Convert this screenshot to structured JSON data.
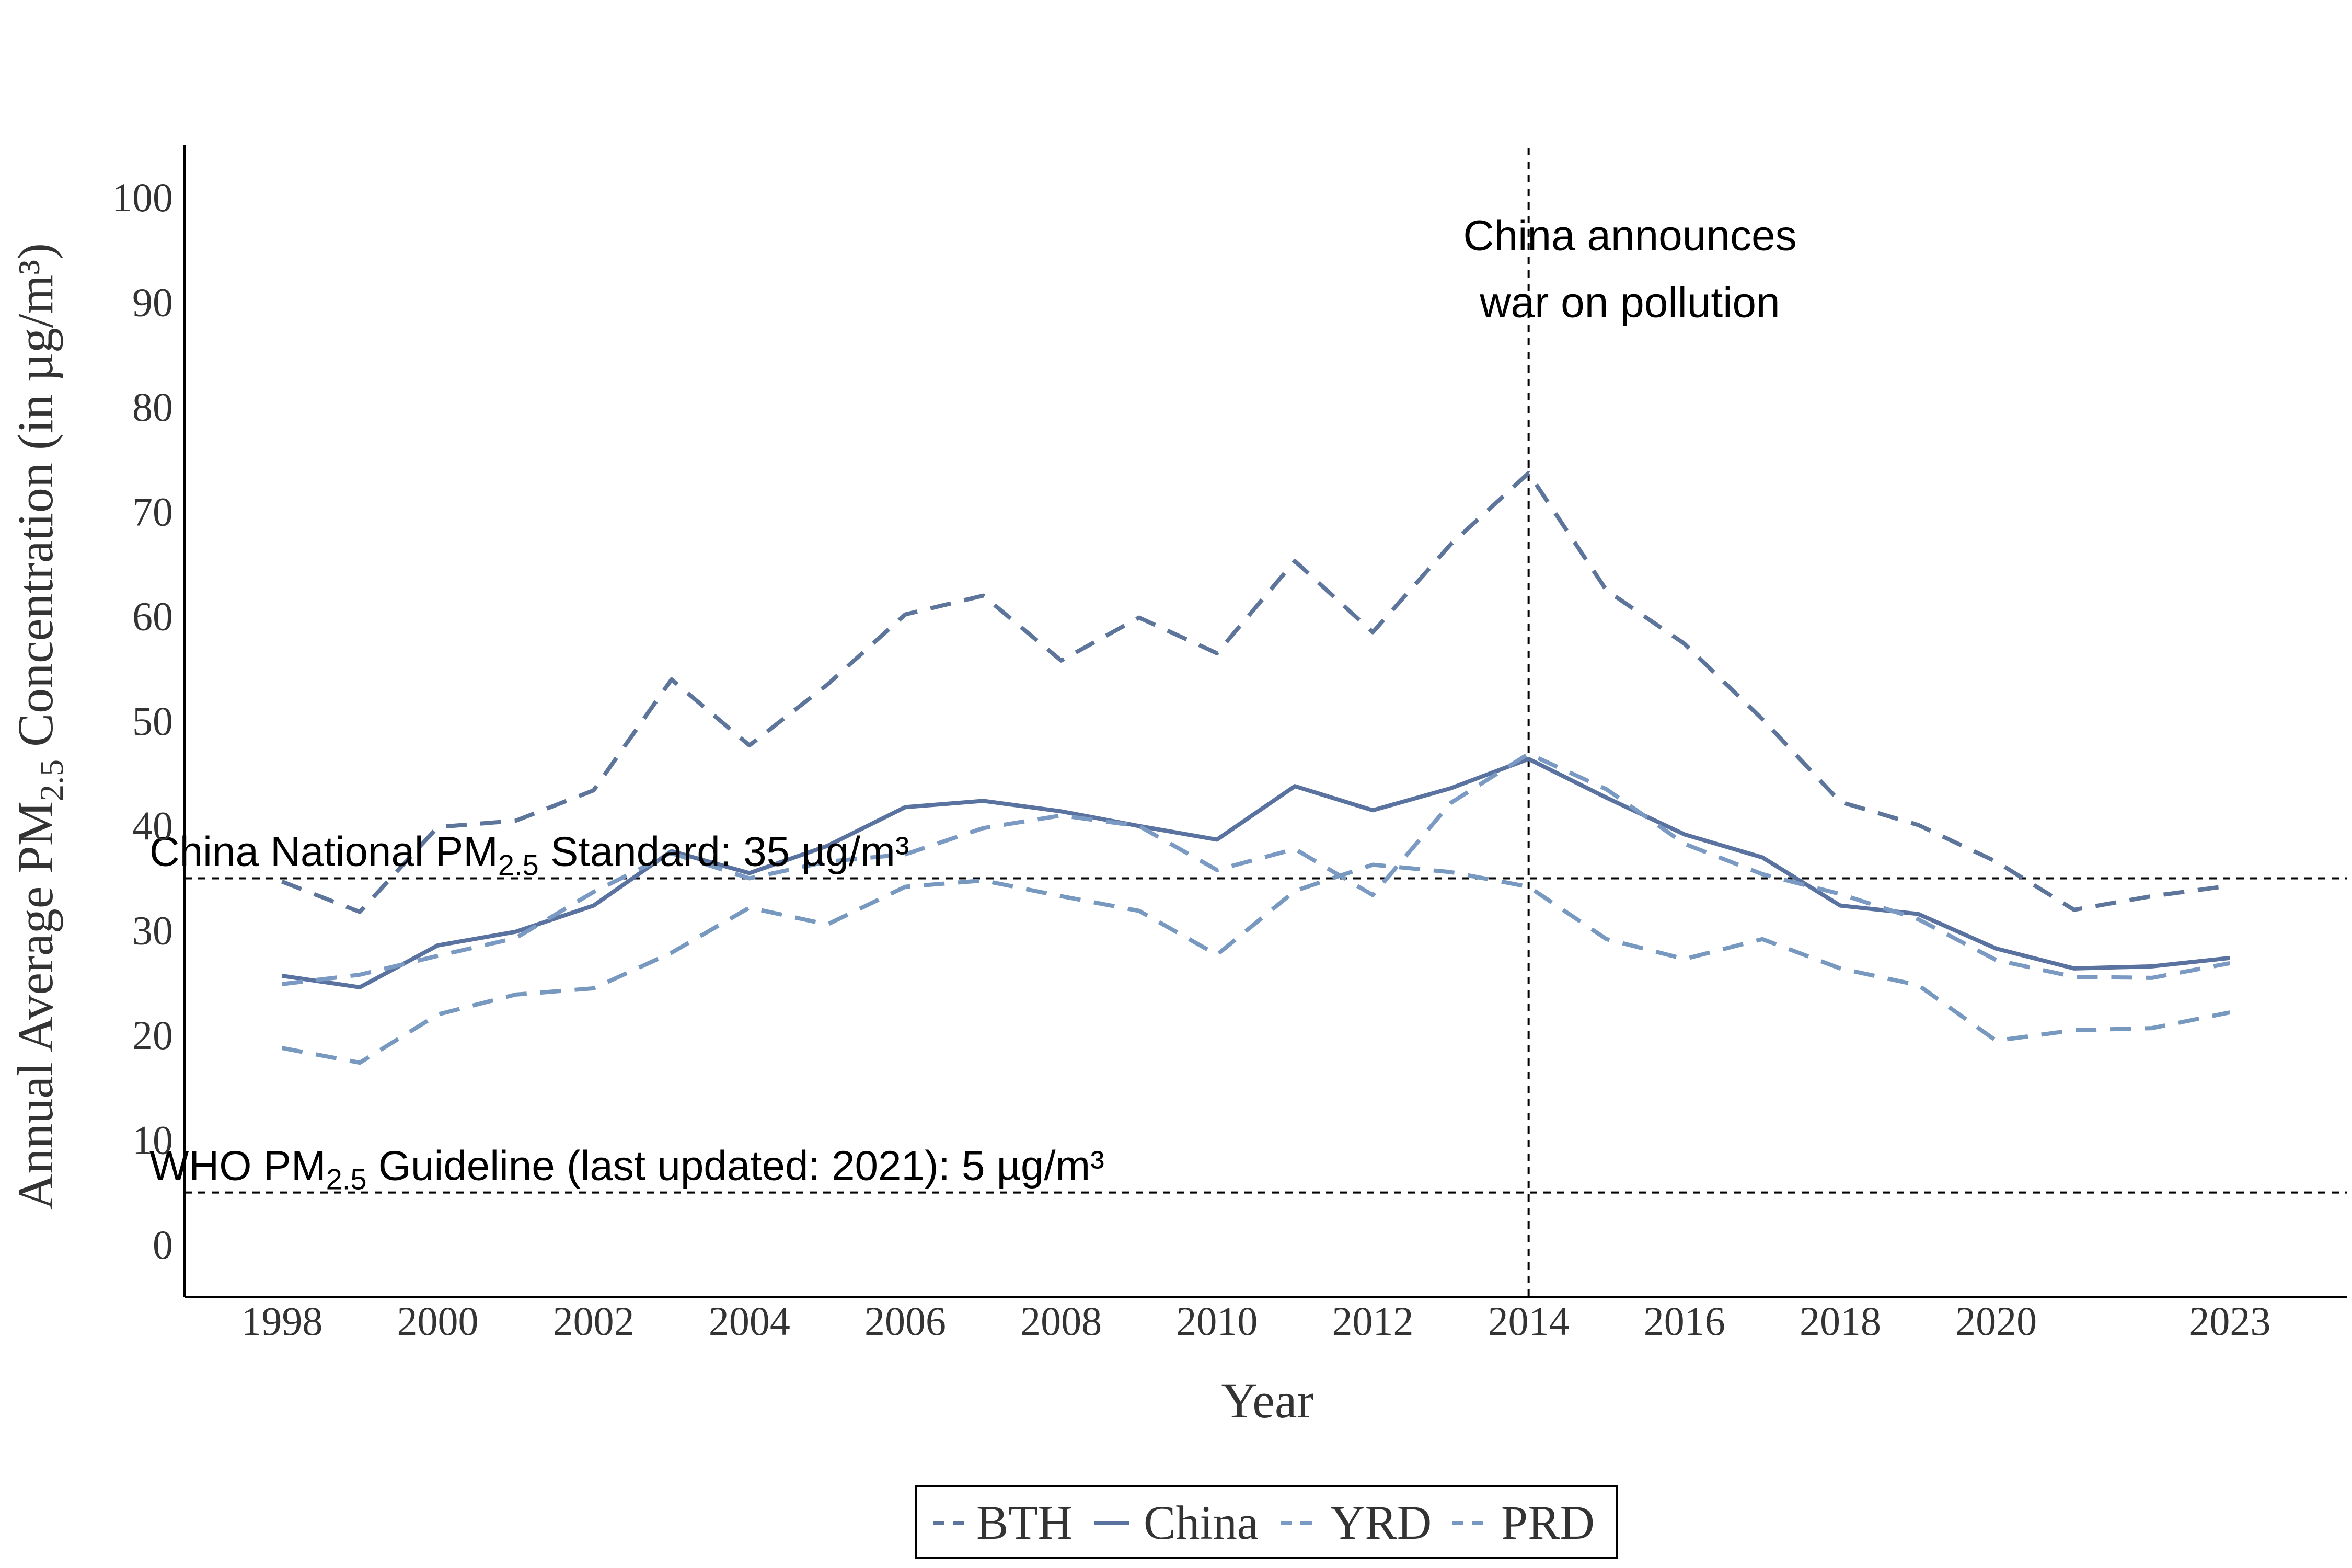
{
  "chart_data": {
    "type": "line",
    "title": "",
    "xlabel": "Year",
    "ylabel": {
      "prefix": "Annual Average  PM",
      "subscript": "2.5",
      "suffix": "  Concentration (in µg/m³)"
    },
    "xlim": [
      1996.75,
      2024.5
    ],
    "ylim": [
      -5,
      105
    ],
    "x_ticks": [
      1998,
      2000,
      2002,
      2004,
      2006,
      2008,
      2010,
      2012,
      2014,
      2016,
      2018,
      2020,
      2023
    ],
    "y_ticks": [
      0,
      10,
      20,
      30,
      40,
      50,
      60,
      70,
      80,
      90,
      100
    ],
    "grid": false,
    "legend_position": "bottom",
    "x": [
      1998,
      1999,
      2000,
      2001,
      2002,
      2003,
      2004,
      2005,
      2006,
      2007,
      2008,
      2009,
      2010,
      2011,
      2012,
      2013,
      2014,
      2015,
      2016,
      2017,
      2018,
      2019,
      2020,
      2021,
      2022,
      2023
    ],
    "series": [
      {
        "name": "BTH",
        "dash": "dashed",
        "color": "#5d759b",
        "values": [
          34.7,
          31.8,
          39.9,
          40.5,
          43.4,
          54.0,
          47.7,
          53.5,
          60.2,
          62.0,
          55.8,
          59.9,
          56.5,
          65.3,
          58.5,
          66.9,
          73.7,
          62.5,
          57.4,
          50.2,
          42.3,
          40.1,
          36.6,
          32.0,
          33.3,
          34.3
        ]
      },
      {
        "name": "China",
        "dash": "solid",
        "color": "#5a72a0",
        "values": [
          25.7,
          24.6,
          28.6,
          29.9,
          32.4,
          37.6,
          35.5,
          38.1,
          41.8,
          42.4,
          41.4,
          40.0,
          38.7,
          43.8,
          41.5,
          43.6,
          46.4,
          42.7,
          39.2,
          37.0,
          32.4,
          31.6,
          28.3,
          26.4,
          26.6,
          27.4
        ]
      },
      {
        "name": "YRD",
        "dash": "dashed",
        "color": "#7b9ac3",
        "values": [
          24.9,
          25.8,
          27.6,
          29.3,
          33.7,
          37.4,
          35.0,
          36.6,
          37.3,
          39.8,
          41.0,
          40.0,
          35.8,
          37.8,
          33.4,
          42.2,
          46.9,
          43.5,
          38.3,
          35.4,
          33.5,
          31.1,
          27.2,
          25.6,
          25.5,
          26.9
        ]
      },
      {
        "name": "PRD",
        "dash": "dashed",
        "color": "#7799c0",
        "values": [
          18.8,
          17.4,
          22.0,
          23.9,
          24.5,
          27.9,
          32.2,
          30.6,
          34.2,
          34.8,
          33.3,
          31.9,
          27.7,
          33.8,
          36.3,
          35.6,
          34.2,
          29.2,
          27.3,
          29.2,
          26.4,
          24.8,
          19.5,
          20.5,
          20.7,
          22.2
        ]
      }
    ],
    "annotations": [
      {
        "kind": "hline",
        "y": 35,
        "label_prefix": "China National PM",
        "label_sub": "2.5",
        "label_suffix": " Standard: 35 µg/m³",
        "label_x": 1996.3,
        "label_y": 36.2
      },
      {
        "kind": "hline",
        "y": 5,
        "label_prefix": "WHO PM",
        "label_sub": "2.5",
        "label_suffix": " Guideline (last updated: 2021): 5 µg/m³",
        "label_x": 1996.3,
        "label_y": 6.2
      },
      {
        "kind": "vline",
        "x": 2014,
        "label_lines": [
          "China announces",
          "war on pollution"
        ],
        "label_x": 2015.3,
        "label_y": 95
      }
    ]
  }
}
